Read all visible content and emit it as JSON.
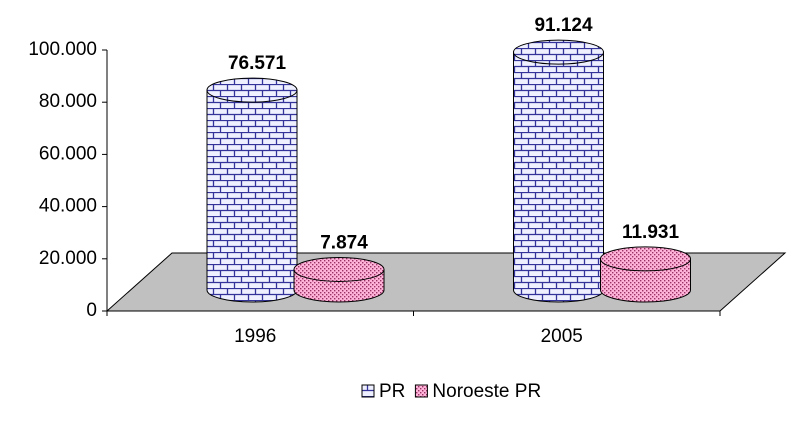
{
  "chart_data": {
    "type": "cylinder",
    "categories": [
      "1996",
      "2005"
    ],
    "series": [
      {
        "name": "PR",
        "color": "#333399",
        "values": [
          76571,
          91124
        ],
        "value_labels": [
          "76.571",
          "91.124"
        ]
      },
      {
        "name": "Noroeste PR",
        "color": "#993366",
        "values": [
          7874,
          11931
        ],
        "value_labels": [
          "7.874",
          "11.931"
        ]
      }
    ],
    "ylim": [
      0,
      100000
    ],
    "yticks": [
      0,
      {
        "value": 20000,
        "label": "20.000"
      },
      {
        "value": 40000,
        "label": "40.000"
      },
      {
        "value": 60000,
        "label": "60.000"
      },
      {
        "value": 80000,
        "label": "80.000"
      },
      {
        "value": 100000,
        "label": "100.000"
      }
    ],
    "legend": "bottom"
  }
}
